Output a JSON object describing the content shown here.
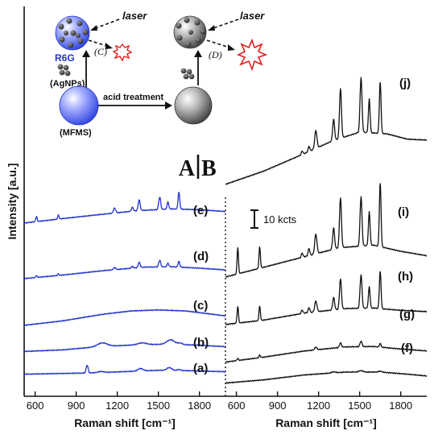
{
  "chart_data": {
    "type": "line",
    "ylabel": "Intensity [a.u.]",
    "panel_marks": {
      "left": "A",
      "right": "B"
    },
    "scale_bar_label": "10 kcts",
    "panels": [
      {
        "panel": "A",
        "xlabel": "Raman shift [cm⁻¹]",
        "xlim": [
          520,
          1990
        ],
        "xticks": [
          600,
          900,
          1200,
          1500,
          1800
        ],
        "line_color": "#2233cc",
        "series": [
          {
            "name": "(a)",
            "baseline": [
              [
                520,
                0.2
              ],
              [
                1000,
                0.9
              ],
              [
                1300,
                1.8
              ],
              [
                1500,
                2.4
              ],
              [
                1700,
                2.2
              ],
              [
                1990,
                1.6
              ]
            ],
            "peaks": [
              [
                980,
                4.5,
                7
              ],
              [
                1080,
                0.6,
                20
              ],
              [
                1370,
                1.4,
                18
              ],
              [
                1580,
                1.6,
                18
              ],
              [
                1650,
                0.6,
                12
              ]
            ]
          },
          {
            "name": "(b)",
            "baseline": [
              [
                520,
                0.3
              ],
              [
                800,
                1.2
              ],
              [
                1100,
                3.2
              ],
              [
                1400,
                4.2
              ],
              [
                1600,
                4.4
              ],
              [
                1800,
                3.8
              ],
              [
                1990,
                3.0
              ]
            ],
            "peaks": [
              [
                1090,
                2.0,
                35
              ],
              [
                1380,
                1.0,
                30
              ],
              [
                1590,
                2.5,
                28
              ],
              [
                1660,
                0.8,
                15
              ]
            ]
          },
          {
            "name": "(c)",
            "baseline": [
              [
                520,
                0.5
              ],
              [
                800,
                3.0
              ],
              [
                1100,
                6.8
              ],
              [
                1300,
                8.6
              ],
              [
                1500,
                9.2
              ],
              [
                1700,
                8.6
              ],
              [
                1850,
                7.2
              ],
              [
                1990,
                5.8
              ]
            ],
            "peaks": []
          },
          {
            "name": "(d)",
            "baseline": [
              [
                520,
                0.5
              ],
              [
                800,
                2.5
              ],
              [
                1100,
                5.0
              ],
              [
                1400,
                7.0
              ],
              [
                1600,
                7.2
              ],
              [
                1800,
                6.4
              ],
              [
                1990,
                5.4
              ]
            ],
            "peaks": [
              [
                610,
                1.0,
                5
              ],
              [
                770,
                0.8,
                5
              ],
              [
                1180,
                1.2,
                8
              ],
              [
                1310,
                1.0,
                7
              ],
              [
                1360,
                3.0,
                7
              ],
              [
                1510,
                3.8,
                7
              ],
              [
                1570,
                2.0,
                6
              ],
              [
                1650,
                3.2,
                6
              ]
            ]
          },
          {
            "name": "(e)",
            "baseline": [
              [
                520,
                0.5
              ],
              [
                800,
                3.0
              ],
              [
                1100,
                5.5
              ],
              [
                1350,
                7.5
              ],
              [
                1600,
                8.5
              ],
              [
                1800,
                8.0
              ],
              [
                1990,
                7.0
              ]
            ],
            "peaks": [
              [
                610,
                3.0,
                5
              ],
              [
                770,
                2.2,
                5
              ],
              [
                1180,
                2.8,
                8
              ],
              [
                1310,
                2.2,
                7
              ],
              [
                1360,
                6.0,
                7
              ],
              [
                1510,
                7.0,
                7
              ],
              [
                1570,
                4.0,
                6
              ],
              [
                1650,
                9.5,
                6
              ]
            ]
          }
        ]
      },
      {
        "panel": "B",
        "xlabel": "Raman shift [cm⁻¹]",
        "xlim": [
          520,
          1990
        ],
        "xticks": [
          600,
          900,
          1200,
          1500,
          1800
        ],
        "line_color": "#111111",
        "series": [
          {
            "name": "(f)",
            "baseline": [
              [
                520,
                0.2
              ],
              [
                800,
                2.0
              ],
              [
                1100,
                4.8
              ],
              [
                1400,
                6.4
              ],
              [
                1650,
                6.4
              ],
              [
                1850,
                5.2
              ],
              [
                1990,
                4.2
              ]
            ],
            "peaks": [
              [
                1310,
                0.6,
                15
              ],
              [
                1510,
                0.8,
                15
              ],
              [
                1650,
                0.5,
                12
              ]
            ]
          },
          {
            "name": "(g)",
            "baseline": [
              [
                520,
                0.2
              ],
              [
                800,
                3.0
              ],
              [
                1100,
                6.5
              ],
              [
                1400,
                8.8
              ],
              [
                1600,
                9.0
              ],
              [
                1800,
                7.6
              ],
              [
                1990,
                6.5
              ]
            ],
            "peaks": [
              [
                610,
                1.2,
                5
              ],
              [
                770,
                1.4,
                5
              ],
              [
                1180,
                1.5,
                8
              ],
              [
                1360,
                2.5,
                7
              ],
              [
                1510,
                3.2,
                7
              ],
              [
                1650,
                2.0,
                6
              ]
            ]
          },
          {
            "name": "(h)",
            "baseline": [
              [
                520,
                0.5
              ],
              [
                800,
                3.0
              ],
              [
                1100,
                7.0
              ],
              [
                1400,
                9.5
              ],
              [
                1600,
                9.8
              ],
              [
                1800,
                8.5
              ],
              [
                1990,
                7.8
              ]
            ],
            "peaks": [
              [
                610,
                9.5,
                5
              ],
              [
                770,
                8.0,
                5
              ],
              [
                1080,
                2.0,
                6
              ],
              [
                1130,
                2.8,
                6
              ],
              [
                1180,
                6.0,
                8
              ],
              [
                1310,
                7.0,
                7
              ],
              [
                1360,
                17.0,
                7
              ],
              [
                1510,
                19.0,
                7
              ],
              [
                1570,
                12.0,
                6
              ],
              [
                1650,
                21.0,
                6
              ]
            ]
          },
          {
            "name": "(i)",
            "baseline": [
              [
                520,
                0.5
              ],
              [
                800,
                6.0
              ],
              [
                1100,
                12.0
              ],
              [
                1350,
                17.0
              ],
              [
                1600,
                18.5
              ],
              [
                1800,
                15.0
              ],
              [
                1990,
                12.5
              ]
            ],
            "peaks": [
              [
                610,
                15.0,
                5
              ],
              [
                770,
                12.0,
                5
              ],
              [
                1080,
                2.5,
                6
              ],
              [
                1130,
                4.0,
                6
              ],
              [
                1180,
                11.0,
                8
              ],
              [
                1310,
                12.0,
                7
              ],
              [
                1360,
                28.0,
                7
              ],
              [
                1510,
                28.0,
                7
              ],
              [
                1570,
                19.0,
                6
              ],
              [
                1650,
                36.0,
                6
              ]
            ]
          },
          {
            "name": "(j)",
            "baseline": [
              [
                520,
                0.5
              ],
              [
                800,
                8.0
              ],
              [
                1100,
                18.0
              ],
              [
                1300,
                25.0
              ],
              [
                1500,
                30.0
              ],
              [
                1700,
                29.0
              ],
              [
                1850,
                26.0
              ],
              [
                1990,
                25.5
              ]
            ],
            "peaks": [
              [
                1080,
                2.0,
                6
              ],
              [
                1130,
                3.0,
                6
              ],
              [
                1180,
                10.0,
                8
              ],
              [
                1310,
                12.0,
                7
              ],
              [
                1360,
                28.0,
                7
              ],
              [
                1510,
                31.0,
                7
              ],
              [
                1570,
                19.0,
                6
              ],
              [
                1650,
                29.0,
                6
              ]
            ]
          }
        ]
      }
    ]
  },
  "inset": {
    "laser_c": "laser",
    "laser_d": "laser",
    "label_c": "(C)",
    "label_d": "(D)",
    "r6g": "R6G",
    "agnps": "(AgNPs)",
    "mfms": "(MFMS)",
    "acid_treatment": "acid treatment",
    "colors": {
      "r6g": "#2233cc",
      "explosion": "#e02020",
      "sphere_blue": "#5566ee",
      "sphere_gray": "#888888"
    }
  }
}
